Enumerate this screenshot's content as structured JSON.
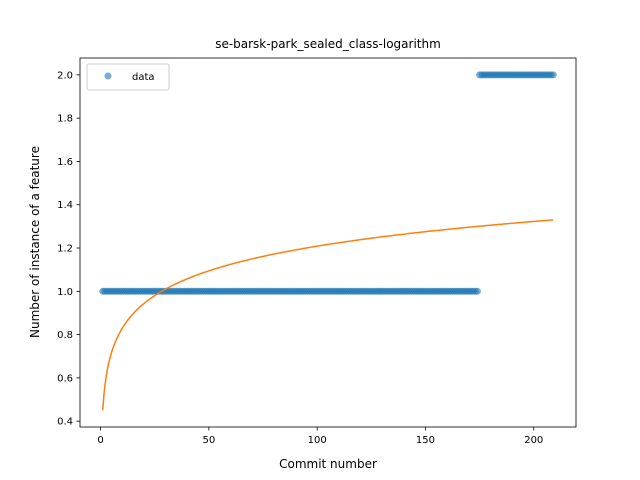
{
  "chart_data": {
    "type": "scatter",
    "title": "se-barsk-park_sealed_class-logarithm",
    "xlabel": "Commit number",
    "ylabel": "Number of instance of a feature",
    "xlim": [
      -9.5,
      219.5
    ],
    "ylim": [
      0.373,
      2.078
    ],
    "xticks": [
      0,
      50,
      100,
      150,
      200
    ],
    "yticks": [
      0.4,
      0.6,
      0.8,
      1.0,
      1.2,
      1.4,
      1.6,
      1.8,
      2.0
    ],
    "ytick_labels": [
      "0.4",
      "0.6",
      "0.8",
      "1.0",
      "1.2",
      "1.4",
      "1.6",
      "1.8",
      "2.0"
    ],
    "grid": false,
    "legend": {
      "position": "top-left",
      "entries": [
        "data"
      ]
    },
    "series": [
      {
        "name": "data",
        "kind": "scatter",
        "color": "#1f77b4",
        "segments": [
          {
            "x_start": 1,
            "x_end": 174,
            "y": 1.0
          },
          {
            "x_start": 175,
            "x_end": 209,
            "y": 2.0
          }
        ]
      },
      {
        "kind": "line",
        "color": "#ff7f0e",
        "fit": "logarithmic",
        "x_range": [
          1,
          209
        ],
        "y_range": [
          0.45,
          1.33
        ]
      }
    ]
  }
}
